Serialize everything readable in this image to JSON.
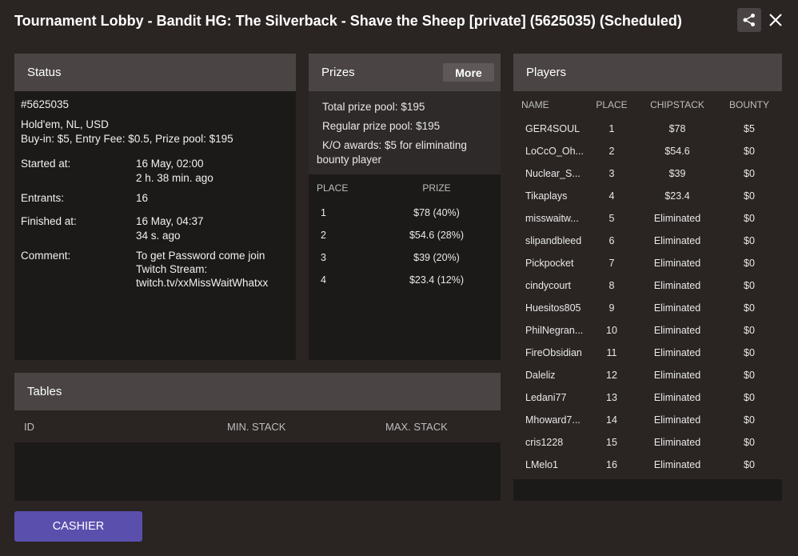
{
  "window": {
    "title": "Tournament Lobby - Bandit HG: The Silverback - Shave the Sheep [private] (5625035) (Scheduled)",
    "share_icon": "share-icon",
    "close_icon": "close-icon"
  },
  "status": {
    "header": "Status",
    "id": "#5625035",
    "game": "Hold'em, NL, USD",
    "buyin_line": "Buy-in: $5, Entry Fee: $0.5, Prize pool: $195",
    "started_label": "Started at:",
    "started_value": "16 May, 02:00",
    "started_ago": "2 h. 38 min. ago",
    "entrants_label": "Entrants:",
    "entrants_value": "16",
    "finished_label": "Finished at:",
    "finished_value": "16 May, 04:37",
    "finished_ago": "34 s. ago",
    "comment_label": "Comment:",
    "comment_lines": [
      "To get Password come join",
      "Twitch Stream:",
      "twitch.tv/xxMissWaitWhatxx"
    ]
  },
  "prizes": {
    "header": "Prizes",
    "more_label": "More",
    "total_label": "Total prize pool:",
    "total_value": "$195",
    "regular_label": "Regular prize pool:",
    "regular_value": "$195",
    "ko_label": "K/O awards:",
    "ko_value": "$5 for eliminating",
    "ko_value_2": "bounty player",
    "columns": {
      "place": "PLACE",
      "prize": "PRIZE"
    },
    "rows": [
      {
        "place": "1",
        "prize": "$78 (40%)"
      },
      {
        "place": "2",
        "prize": "$54.6 (28%)"
      },
      {
        "place": "3",
        "prize": "$39 (20%)"
      },
      {
        "place": "4",
        "prize": "$23.4 (12%)"
      }
    ]
  },
  "players": {
    "header": "Players",
    "columns": {
      "name": "NAME",
      "place": "PLACE",
      "chipstack": "CHIPSTACK",
      "bounty": "BOUNTY"
    },
    "rows": [
      {
        "name": "GER4SOUL",
        "place": "1",
        "chipstack": "$78",
        "bounty": "$5"
      },
      {
        "name": "LoCcO_Oh...",
        "place": "2",
        "chipstack": "$54.6",
        "bounty": "$0"
      },
      {
        "name": "Nuclear_S...",
        "place": "3",
        "chipstack": "$39",
        "bounty": "$0"
      },
      {
        "name": "Tikaplays",
        "place": "4",
        "chipstack": "$23.4",
        "bounty": "$0"
      },
      {
        "name": "misswaitw...",
        "place": "5",
        "chipstack": "Eliminated",
        "bounty": "$0"
      },
      {
        "name": "slipandbleed",
        "place": "6",
        "chipstack": "Eliminated",
        "bounty": "$0"
      },
      {
        "name": "Pickpocket",
        "place": "7",
        "chipstack": "Eliminated",
        "bounty": "$0"
      },
      {
        "name": "cindycourt",
        "place": "8",
        "chipstack": "Eliminated",
        "bounty": "$0"
      },
      {
        "name": "Huesitos805",
        "place": "9",
        "chipstack": "Eliminated",
        "bounty": "$0"
      },
      {
        "name": "PhilNegran...",
        "place": "10",
        "chipstack": "Eliminated",
        "bounty": "$0"
      },
      {
        "name": "FireObsidian",
        "place": "11",
        "chipstack": "Eliminated",
        "bounty": "$0"
      },
      {
        "name": "Daleliz",
        "place": "12",
        "chipstack": "Eliminated",
        "bounty": "$0"
      },
      {
        "name": "Ledani77",
        "place": "13",
        "chipstack": "Eliminated",
        "bounty": "$0"
      },
      {
        "name": "Mhoward7...",
        "place": "14",
        "chipstack": "Eliminated",
        "bounty": "$0"
      },
      {
        "name": "cris1228",
        "place": "15",
        "chipstack": "Eliminated",
        "bounty": "$0"
      },
      {
        "name": "LMelo1",
        "place": "16",
        "chipstack": "Eliminated",
        "bounty": "$0"
      }
    ]
  },
  "tables": {
    "header": "Tables",
    "columns": {
      "id": "ID",
      "min": "MIN. STACK",
      "max": "MAX. STACK"
    }
  },
  "footer": {
    "cashier_label": "CASHIER",
    "cashier_color": "#5b4fae"
  }
}
